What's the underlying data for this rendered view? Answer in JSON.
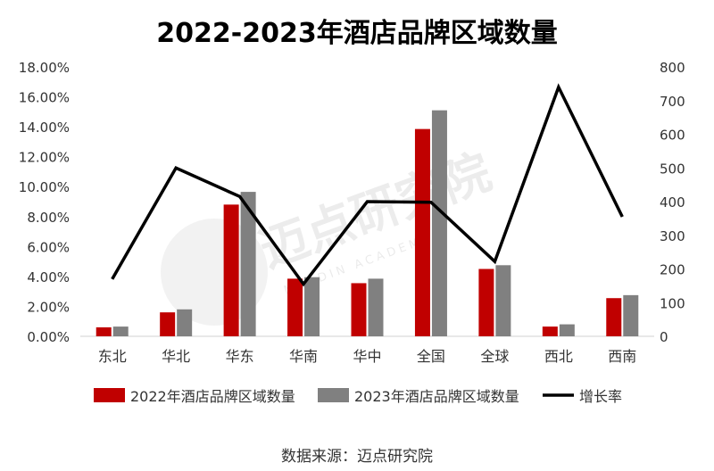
{
  "chart_data": {
    "type": "bar",
    "title": "2022-2023年酒店品牌区域数量",
    "categories": [
      "东北",
      "华北",
      "华东",
      "华南",
      "华中",
      "全国",
      "全球",
      "西北",
      "西南"
    ],
    "series": [
      {
        "name": "2022年酒店品牌区域数量",
        "axis": "left",
        "kind": "bar",
        "color": "#c00000",
        "values": [
          0.6,
          1.6,
          8.8,
          3.85,
          3.55,
          13.85,
          4.5,
          0.65,
          2.55
        ]
      },
      {
        "name": "2023年酒店品牌区域数量",
        "axis": "left",
        "kind": "bar",
        "color": "#808080",
        "values": [
          0.65,
          1.8,
          9.65,
          3.95,
          3.85,
          15.1,
          4.75,
          0.8,
          2.75
        ]
      },
      {
        "name": "增长率",
        "axis": "right",
        "kind": "line",
        "color": "#000000",
        "values": [
          170,
          500,
          415,
          155,
          400,
          398,
          222,
          740,
          355
        ]
      }
    ],
    "y_left": {
      "min": 0,
      "max": 18,
      "step": 2,
      "format": "percent2",
      "ticks": [
        "0.00%",
        "2.00%",
        "4.00%",
        "6.00%",
        "8.00%",
        "10.00%",
        "12.00%",
        "14.00%",
        "16.00%",
        "18.00%"
      ]
    },
    "y_right": {
      "min": 0,
      "max": 800,
      "step": 100,
      "ticks": [
        "0",
        "100",
        "200",
        "300",
        "400",
        "500",
        "600",
        "700",
        "800"
      ]
    },
    "legend_position": "bottom",
    "grid": false
  },
  "watermark": {
    "text": "迈点研究院",
    "subtext": "MEADIN ACADEMY"
  },
  "source_text": "数据来源：迈点研究院"
}
